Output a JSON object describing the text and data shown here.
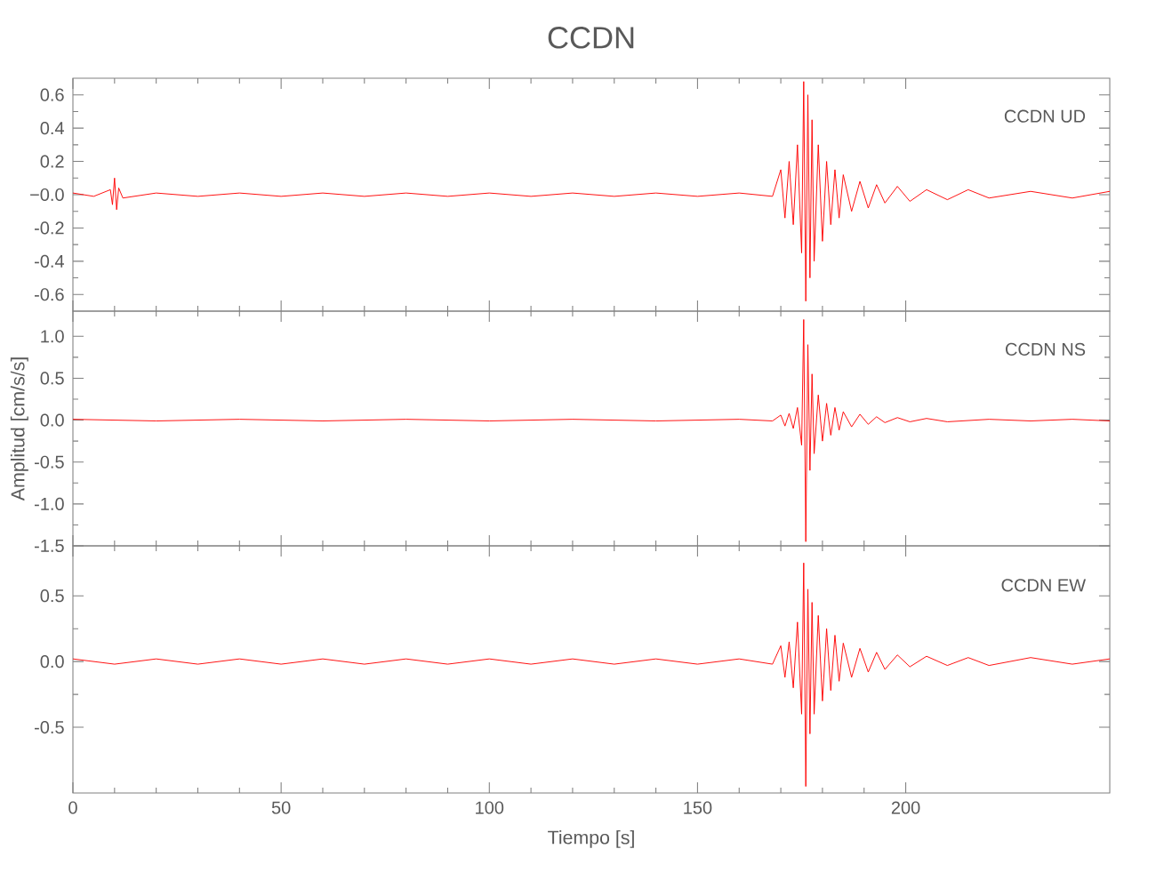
{
  "chart_data": [
    {
      "type": "line",
      "title": "CCDN",
      "annotations": [
        "CCDN   UD"
      ],
      "xlim": [
        0,
        249
      ],
      "ylim": [
        -0.7,
        0.7
      ],
      "xticks": [
        0,
        50,
        100,
        150,
        200
      ],
      "yticks": [
        -0.6,
        -0.4,
        -0.2,
        {
          "value": 0,
          "label": "−0.0"
        },
        0.2,
        0.4,
        0.6
      ],
      "tick_labels": "y",
      "series": [
        {
          "color": "#ff0000",
          "x": [
            0,
            5,
            9,
            9.5,
            10,
            10.5,
            11,
            12,
            20,
            30,
            40,
            50,
            60,
            70,
            80,
            90,
            100,
            110,
            120,
            130,
            140,
            150,
            160,
            168,
            170,
            171,
            172,
            173,
            174,
            175,
            175.5,
            176,
            176.5,
            177,
            177.5,
            178,
            179,
            180,
            181,
            182,
            183,
            184,
            185,
            187,
            189,
            191,
            193,
            195,
            198,
            201,
            205,
            210,
            215,
            220,
            230,
            240,
            249
          ],
          "values": [
            0.01,
            -0.01,
            0.03,
            -0.06,
            0.1,
            -0.09,
            0.04,
            -0.02,
            0.01,
            -0.01,
            0.01,
            -0.01,
            0.01,
            -0.01,
            0.01,
            -0.01,
            0.01,
            -0.01,
            0.01,
            -0.01,
            0.01,
            -0.01,
            0.01,
            -0.01,
            0.15,
            -0.14,
            0.2,
            -0.18,
            0.3,
            -0.35,
            0.68,
            -0.64,
            0.6,
            -0.5,
            0.45,
            -0.4,
            0.3,
            -0.28,
            0.2,
            -0.18,
            0.15,
            -0.14,
            0.12,
            -0.1,
            0.08,
            -0.08,
            0.06,
            -0.05,
            0.05,
            -0.04,
            0.03,
            -0.03,
            0.03,
            -0.02,
            0.02,
            -0.02,
            0.02
          ]
        }
      ]
    },
    {
      "type": "line",
      "ylabel": "Amplitud  [cm/s/s]",
      "annotations": [
        "CCDN    NS"
      ],
      "xlim": [
        0,
        249
      ],
      "ylim": [
        -1.5,
        1.3
      ],
      "xticks": [
        0,
        50,
        100,
        150,
        200
      ],
      "yticks": [
        -1.5,
        {
          "value": -1.0,
          "label": "-1.0"
        },
        -0.5,
        {
          "value": 0,
          "label": "0.0"
        },
        0.5,
        {
          "value": 1.0,
          "label": "1.0"
        }
      ],
      "tick_labels": "y",
      "series": [
        {
          "color": "#ff0000",
          "x": [
            0,
            20,
            40,
            60,
            80,
            100,
            120,
            140,
            160,
            168,
            170,
            171,
            172,
            173,
            174,
            175,
            175.5,
            176,
            176.5,
            177,
            177.5,
            178,
            179,
            180,
            181,
            182,
            183,
            184,
            185,
            187,
            189,
            191,
            193,
            195,
            198,
            201,
            205,
            210,
            220,
            230,
            240,
            249
          ],
          "values": [
            0.01,
            -0.01,
            0.01,
            -0.01,
            0.01,
            -0.01,
            0.01,
            -0.01,
            0.01,
            -0.01,
            0.06,
            -0.07,
            0.08,
            -0.1,
            0.15,
            -0.3,
            1.2,
            -1.45,
            0.9,
            -0.6,
            0.55,
            -0.4,
            0.3,
            -0.25,
            0.2,
            -0.18,
            0.15,
            -0.12,
            0.1,
            -0.08,
            0.07,
            -0.05,
            0.04,
            -0.03,
            0.03,
            -0.02,
            0.02,
            -0.02,
            0.01,
            -0.01,
            0.01,
            -0.01
          ]
        }
      ]
    },
    {
      "type": "line",
      "xlabel": "Tiempo  [s]",
      "annotations": [
        "CCDN    EW"
      ],
      "xlim": [
        0,
        249
      ],
      "ylim": [
        -1.0,
        0.88
      ],
      "xticks": [
        0,
        50,
        100,
        150,
        200
      ],
      "yticks": [
        -0.5,
        {
          "value": 0,
          "label": "0.0"
        },
        0.5
      ],
      "series": [
        {
          "color": "#ff0000",
          "x": [
            0,
            10,
            20,
            30,
            40,
            50,
            60,
            70,
            80,
            90,
            100,
            110,
            120,
            130,
            140,
            150,
            160,
            168,
            170,
            171,
            172,
            173,
            174,
            175,
            175.5,
            176,
            176.5,
            177,
            177.5,
            178,
            179,
            180,
            181,
            182,
            183,
            184,
            185,
            187,
            189,
            191,
            193,
            195,
            198,
            201,
            205,
            210,
            215,
            220,
            230,
            240,
            249
          ],
          "values": [
            0.02,
            -0.02,
            0.02,
            -0.02,
            0.02,
            -0.02,
            0.02,
            -0.02,
            0.02,
            -0.02,
            0.02,
            -0.02,
            0.02,
            -0.02,
            0.02,
            -0.02,
            0.02,
            -0.02,
            0.12,
            -0.12,
            0.15,
            -0.2,
            0.3,
            -0.4,
            0.75,
            -0.95,
            0.55,
            -0.55,
            0.45,
            -0.4,
            0.35,
            -0.3,
            0.25,
            -0.22,
            0.2,
            -0.15,
            0.14,
            -0.12,
            0.1,
            -0.08,
            0.07,
            -0.06,
            0.05,
            -0.04,
            0.04,
            -0.03,
            0.03,
            -0.03,
            0.03,
            -0.02,
            0.02
          ]
        }
      ]
    }
  ]
}
